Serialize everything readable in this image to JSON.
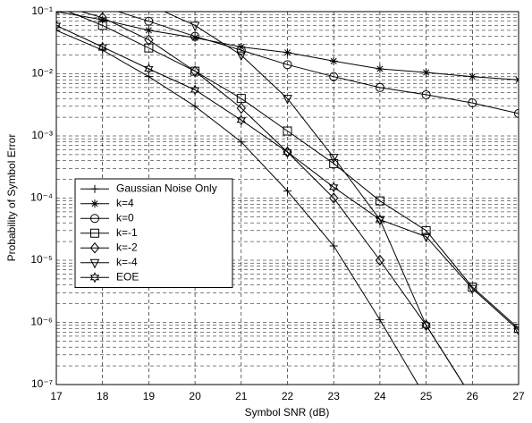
{
  "chart_data": {
    "type": "line",
    "xlabel": "Symbol SNR (dB)",
    "ylabel": "Probability of Symbol Error",
    "x": [
      17,
      18,
      19,
      20,
      21,
      22,
      23,
      24,
      25,
      26,
      27
    ],
    "xlim": [
      17,
      27
    ],
    "xticks": [
      17,
      18,
      19,
      20,
      21,
      22,
      23,
      24,
      25,
      26,
      27
    ],
    "ylim": [
      1e-07,
      0.1
    ],
    "yscale": "log",
    "yticks": [
      {
        "value": 1e-07,
        "label": "10⁻⁷"
      },
      {
        "value": 1e-06,
        "label": "10⁻⁶"
      },
      {
        "value": 1e-05,
        "label": "10⁻⁵"
      },
      {
        "value": 0.0001,
        "label": "10⁻⁴"
      },
      {
        "value": 0.001,
        "label": "10⁻³"
      },
      {
        "value": 0.01,
        "label": "10⁻²"
      },
      {
        "value": 0.1,
        "label": "10⁻¹"
      }
    ],
    "grid": true,
    "minor_grid": true,
    "legend": "lower left",
    "series": [
      {
        "name": "Gaussian Noise Only",
        "color": "#000000",
        "marker": "plus",
        "values": [
          0.05,
          0.024,
          0.009,
          0.003,
          0.0008,
          0.00013,
          1.7e-05,
          1.1e-06,
          6e-08,
          null,
          null
        ]
      },
      {
        "name": "k=4",
        "color": "#000000",
        "marker": "asterisk",
        "values": [
          0.1,
          0.074,
          0.05,
          0.038,
          0.027,
          0.022,
          0.016,
          0.012,
          0.0105,
          0.009,
          0.008
        ]
      },
      {
        "name": "k=0",
        "color": "#000000",
        "marker": "circle",
        "values": [
          null,
          0.12,
          0.07,
          0.04,
          0.024,
          0.014,
          0.009,
          0.006,
          0.0046,
          0.0034,
          0.0023
        ]
      },
      {
        "name": "k=-1",
        "color": "#000000",
        "marker": "square",
        "values": [
          0.12,
          0.06,
          0.026,
          0.011,
          0.004,
          0.0012,
          0.00036,
          9e-05,
          3e-05,
          3.7e-06,
          8e-07
        ]
      },
      {
        "name": "k=-2",
        "color": "#000000",
        "marker": "diamond",
        "values": [
          0.13,
          0.08,
          0.035,
          0.011,
          0.0028,
          0.00055,
          0.0001,
          1e-05,
          9e-07,
          6e-08,
          null
        ]
      },
      {
        "name": "k=-4",
        "color": "#000000",
        "marker": "triangle",
        "values": [
          null,
          null,
          0.13,
          0.06,
          0.02,
          0.004,
          0.00045,
          4.5e-05,
          2.4e-05,
          3.5e-06,
          7.5e-07
        ]
      },
      {
        "name": "EOE",
        "color": "#000000",
        "marker": "hexagram",
        "values": [
          0.06,
          0.027,
          0.012,
          0.0055,
          0.0018,
          0.00055,
          0.00015,
          4.5e-05,
          9e-07,
          6e-08,
          null
        ]
      }
    ]
  }
}
